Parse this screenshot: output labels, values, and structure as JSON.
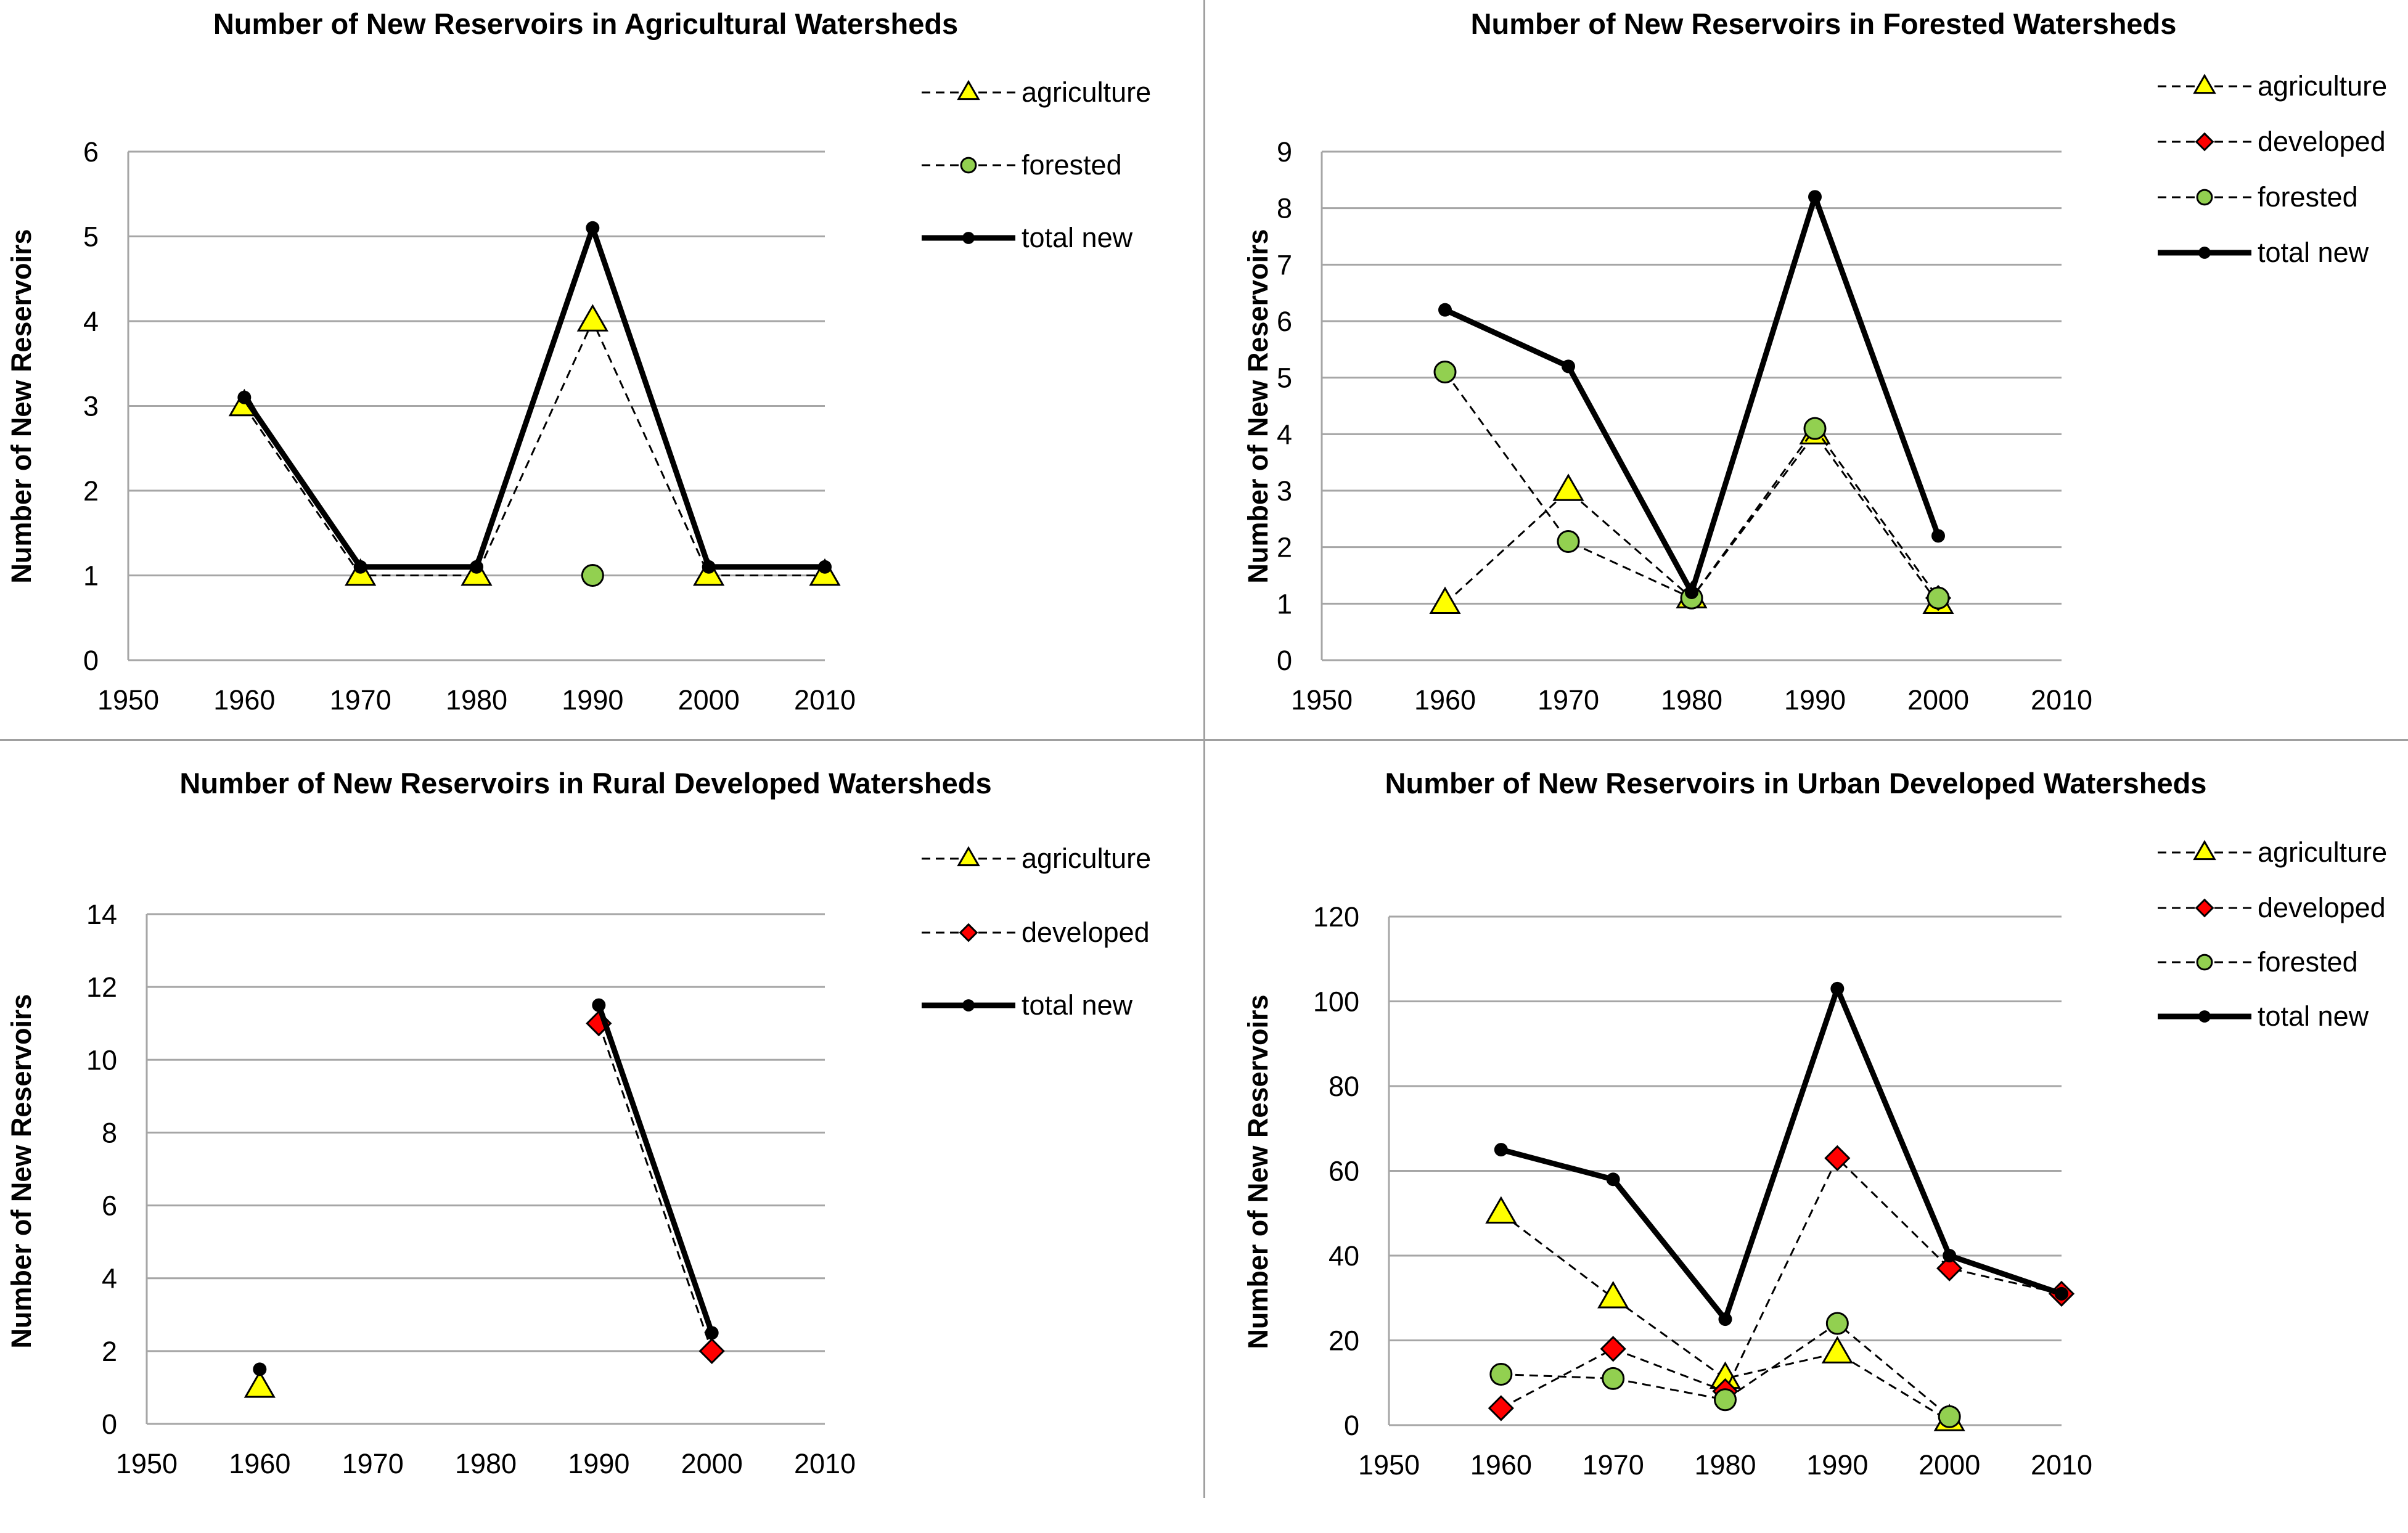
{
  "colors": {
    "agriculture": "#ffff00",
    "developed": "#ff0000",
    "forested": "#92d050",
    "total": "#000000",
    "grid": "#a6a6a6",
    "divider": "#a0a0a0"
  },
  "chart_data": [
    {
      "type": "line",
      "title": "Number of New Reservoirs in  Agricultural Watersheds",
      "xlabel": "",
      "ylabel": "Number of New Reservoirs",
      "xlim": [
        1950,
        2010
      ],
      "ylim": [
        0,
        6
      ],
      "xticks": [
        1950,
        1960,
        1970,
        1980,
        1990,
        2000,
        2010
      ],
      "yticks": [
        0,
        1,
        2,
        3,
        4,
        5,
        6
      ],
      "legend_position": "right",
      "series": [
        {
          "name": "agriculture",
          "marker": "triangle",
          "line": "dashed",
          "color": "#ffff00",
          "x": [
            1960,
            1970,
            1980,
            1990,
            2000,
            2010
          ],
          "values": [
            3,
            1,
            1,
            4,
            1,
            1
          ]
        },
        {
          "name": "forested",
          "marker": "circle",
          "line": "dashed",
          "color": "#92d050",
          "x": [
            1990
          ],
          "values": [
            1
          ]
        },
        {
          "name": "total new",
          "marker": "dot",
          "line": "solid",
          "color": "#000000",
          "x": [
            1960,
            1970,
            1980,
            1990,
            2000,
            2010
          ],
          "values": [
            3.1,
            1.1,
            1.1,
            5.1,
            1.1,
            1.1
          ]
        }
      ]
    },
    {
      "type": "line",
      "title": "Number of New Reservoirs in  Forested Watersheds",
      "xlabel": "",
      "ylabel": "Number of New Reservoirs",
      "xlim": [
        1950,
        2010
      ],
      "ylim": [
        0,
        9
      ],
      "xticks": [
        1950,
        1960,
        1970,
        1980,
        1990,
        2000,
        2010
      ],
      "yticks": [
        0,
        1,
        2,
        3,
        4,
        5,
        6,
        7,
        8,
        9
      ],
      "legend_position": "right",
      "series": [
        {
          "name": "agriculture",
          "marker": "triangle",
          "line": "dashed",
          "color": "#ffff00",
          "x": [
            1960,
            1970,
            1980,
            1990,
            2000
          ],
          "values": [
            1,
            3,
            1.1,
            4,
            1
          ]
        },
        {
          "name": "developed",
          "marker": "diamond",
          "line": "dashed",
          "color": "#ff0000",
          "x": [
            2000
          ],
          "values": [
            1.1
          ]
        },
        {
          "name": "forested",
          "marker": "circle",
          "line": "dashed",
          "color": "#92d050",
          "x": [
            1960,
            1970,
            1980,
            1990,
            2000
          ],
          "values": [
            5.1,
            2.1,
            1.1,
            4.1,
            1.1
          ]
        },
        {
          "name": "total new",
          "marker": "dot",
          "line": "solid",
          "color": "#000000",
          "x": [
            1960,
            1970,
            1980,
            1990,
            2000
          ],
          "values": [
            6.2,
            5.2,
            1.2,
            8.2,
            2.2
          ]
        }
      ]
    },
    {
      "type": "line",
      "title": "Number of New Reservoirs in  Rural Developed Watersheds",
      "xlabel": "",
      "ylabel": "Number of New Reservoirs",
      "xlim": [
        1950,
        2010
      ],
      "ylim": [
        0,
        14
      ],
      "xticks": [
        1950,
        1960,
        1970,
        1980,
        1990,
        2000,
        2010
      ],
      "yticks": [
        0,
        2,
        4,
        6,
        8,
        10,
        12,
        14
      ],
      "legend_position": "right",
      "series": [
        {
          "name": "agriculture",
          "marker": "triangle",
          "line": "dashed",
          "color": "#ffff00",
          "x": [
            1960
          ],
          "values": [
            1
          ]
        },
        {
          "name": "developed",
          "marker": "diamond",
          "line": "dashed",
          "color": "#ff0000",
          "x": [
            1990,
            2000
          ],
          "values": [
            11,
            2
          ]
        },
        {
          "name": "total new",
          "marker": "dot",
          "line": "solid",
          "color": "#000000",
          "x": [
            1960,
            1990,
            2000
          ],
          "values": [
            1.5,
            11.5,
            2.5
          ],
          "segments": [
            [
              1990,
              2000
            ]
          ]
        }
      ]
    },
    {
      "type": "line",
      "title": "Number of New Reservoirs in  Urban Developed Watersheds",
      "xlabel": "",
      "ylabel": "Number of New Reservoirs",
      "xlim": [
        1950,
        2010
      ],
      "ylim": [
        0,
        120
      ],
      "xticks": [
        1950,
        1960,
        1970,
        1980,
        1990,
        2000,
        2010
      ],
      "yticks": [
        0,
        20,
        40,
        60,
        80,
        100,
        120
      ],
      "legend_position": "right",
      "series": [
        {
          "name": "agriculture",
          "marker": "triangle",
          "line": "dashed",
          "color": "#ffff00",
          "x": [
            1960,
            1970,
            1980,
            1990,
            2000
          ],
          "values": [
            50,
            30,
            11,
            17,
            1
          ]
        },
        {
          "name": "developed",
          "marker": "diamond",
          "line": "dashed",
          "color": "#ff0000",
          "x": [
            1960,
            1970,
            1980,
            1990,
            2000,
            2010
          ],
          "values": [
            4,
            18,
            8,
            63,
            37,
            31
          ]
        },
        {
          "name": "forested",
          "marker": "circle",
          "line": "dashed",
          "color": "#92d050",
          "x": [
            1960,
            1970,
            1980,
            1990,
            2000
          ],
          "values": [
            12,
            11,
            6,
            24,
            2
          ]
        },
        {
          "name": "total new",
          "marker": "dot",
          "line": "solid",
          "color": "#000000",
          "x": [
            1960,
            1970,
            1980,
            1990,
            2000,
            2010
          ],
          "values": [
            65,
            58,
            25,
            103,
            40,
            31
          ]
        }
      ]
    }
  ]
}
